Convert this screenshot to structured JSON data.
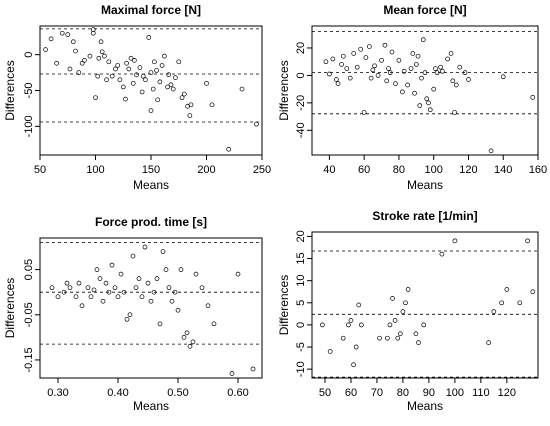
{
  "chart_data": [
    {
      "type": "scatter",
      "title": "Maximal force [N]",
      "xlabel": "Means",
      "ylabel": "Differences",
      "xlim": [
        50,
        250
      ],
      "ylim": [
        -140,
        40
      ],
      "xticks": [
        50,
        100,
        150,
        200,
        250
      ],
      "yticks": [
        -100,
        -50,
        0
      ],
      "hlines": [
        36,
        -27,
        -94
      ],
      "points": [
        [
          55,
          7
        ],
        [
          60,
          22
        ],
        [
          65,
          -12
        ],
        [
          70,
          30
        ],
        [
          75,
          28
        ],
        [
          77,
          -20
        ],
        [
          80,
          18
        ],
        [
          82,
          5
        ],
        [
          85,
          -25
        ],
        [
          88,
          -12
        ],
        [
          90,
          -8
        ],
        [
          95,
          -2
        ],
        [
          98,
          30
        ],
        [
          98,
          35
        ],
        [
          100,
          -60
        ],
        [
          102,
          -30
        ],
        [
          103,
          -5
        ],
        [
          105,
          18
        ],
        [
          106,
          4
        ],
        [
          108,
          -2
        ],
        [
          110,
          -35
        ],
        [
          112,
          -10
        ],
        [
          115,
          -30
        ],
        [
          118,
          -20
        ],
        [
          120,
          -15
        ],
        [
          122,
          -35
        ],
        [
          125,
          -45
        ],
        [
          127,
          -62
        ],
        [
          128,
          -12
        ],
        [
          130,
          -20
        ],
        [
          132,
          -5
        ],
        [
          134,
          -40
        ],
        [
          135,
          -8
        ],
        [
          137,
          -28
        ],
        [
          140,
          -18
        ],
        [
          142,
          -52
        ],
        [
          143,
          -30
        ],
        [
          145,
          -35
        ],
        [
          148,
          24
        ],
        [
          150,
          -25
        ],
        [
          150,
          -78
        ],
        [
          152,
          -48
        ],
        [
          153,
          -10
        ],
        [
          155,
          -22
        ],
        [
          156,
          -63
        ],
        [
          158,
          -38
        ],
        [
          160,
          -15
        ],
        [
          162,
          -2
        ],
        [
          165,
          -45
        ],
        [
          166,
          -28
        ],
        [
          168,
          -42
        ],
        [
          170,
          -48
        ],
        [
          172,
          -32
        ],
        [
          175,
          -10
        ],
        [
          178,
          -60
        ],
        [
          180,
          -55
        ],
        [
          183,
          -72
        ],
        [
          185,
          -85
        ],
        [
          186,
          -70
        ],
        [
          200,
          -40
        ],
        [
          205,
          -70
        ],
        [
          220,
          -132
        ],
        [
          232,
          -48
        ],
        [
          245,
          -97
        ]
      ]
    },
    {
      "type": "scatter",
      "title": "Mean force [N]",
      "xlabel": "Means",
      "ylabel": "Differences",
      "xlim": [
        30,
        160
      ],
      "ylim": [
        -58,
        36
      ],
      "xticks": [
        40,
        60,
        80,
        100,
        120,
        140,
        160
      ],
      "yticks": [
        -40,
        -20,
        0,
        20
      ],
      "hlines": [
        32,
        2,
        -28
      ],
      "points": [
        [
          38,
          10
        ],
        [
          40,
          1
        ],
        [
          42,
          12
        ],
        [
          44,
          -3
        ],
        [
          45,
          -6
        ],
        [
          47,
          8
        ],
        [
          48,
          14
        ],
        [
          50,
          5
        ],
        [
          52,
          -2
        ],
        [
          54,
          16
        ],
        [
          56,
          6
        ],
        [
          58,
          19
        ],
        [
          60,
          -27
        ],
        [
          61,
          13
        ],
        [
          63,
          21
        ],
        [
          64,
          -2
        ],
        [
          65,
          4
        ],
        [
          66,
          7
        ],
        [
          68,
          0
        ],
        [
          70,
          11
        ],
        [
          72,
          22
        ],
        [
          73,
          -4
        ],
        [
          74,
          5
        ],
        [
          75,
          2
        ],
        [
          76,
          17
        ],
        [
          78,
          -6
        ],
        [
          80,
          11
        ],
        [
          82,
          -12
        ],
        [
          83,
          3
        ],
        [
          85,
          -7
        ],
        [
          87,
          5
        ],
        [
          88,
          16
        ],
        [
          89,
          -13
        ],
        [
          90,
          8
        ],
        [
          91,
          14
        ],
        [
          92,
          -22
        ],
        [
          93,
          -2
        ],
        [
          94,
          26
        ],
        [
          95,
          2
        ],
        [
          96,
          -17
        ],
        [
          97,
          -20
        ],
        [
          98,
          -25
        ],
        [
          100,
          -10
        ],
        [
          101,
          5
        ],
        [
          102,
          2
        ],
        [
          104,
          6
        ],
        [
          105,
          3
        ],
        [
          108,
          12
        ],
        [
          110,
          16
        ],
        [
          111,
          -4
        ],
        [
          112,
          -27
        ],
        [
          113,
          -7
        ],
        [
          115,
          6
        ],
        [
          118,
          2
        ],
        [
          120,
          -3
        ],
        [
          133,
          -55
        ],
        [
          140,
          -1
        ],
        [
          157,
          -16
        ]
      ]
    },
    {
      "type": "scatter",
      "title": "Force prod. time [s]",
      "xlabel": "Means",
      "ylabel": "Differences",
      "xlim": [
        0.27,
        0.64
      ],
      "ylim": [
        -0.19,
        0.12
      ],
      "xticks": [
        0.3,
        0.4,
        0.5,
        0.6
      ],
      "xtick_labels": [
        "0.30",
        "0.40",
        "0.50",
        "0.60"
      ],
      "yticks": [
        -0.15,
        -0.05,
        0.05
      ],
      "hlines": [
        0.11,
        0.0,
        -0.115
      ],
      "points": [
        [
          0.29,
          0.01
        ],
        [
          0.3,
          -0.01
        ],
        [
          0.31,
          0.0
        ],
        [
          0.315,
          0.02
        ],
        [
          0.32,
          0.01
        ],
        [
          0.33,
          -0.01
        ],
        [
          0.335,
          0.02
        ],
        [
          0.34,
          -0.03
        ],
        [
          0.35,
          0.01
        ],
        [
          0.355,
          -0.01
        ],
        [
          0.36,
          0.005
        ],
        [
          0.365,
          0.05
        ],
        [
          0.37,
          0.03
        ],
        [
          0.375,
          -0.02
        ],
        [
          0.38,
          0.02
        ],
        [
          0.385,
          0.0
        ],
        [
          0.39,
          0.06
        ],
        [
          0.395,
          0.01
        ],
        [
          0.4,
          -0.01
        ],
        [
          0.405,
          0.04
        ],
        [
          0.41,
          0.0
        ],
        [
          0.415,
          -0.06
        ],
        [
          0.42,
          -0.05
        ],
        [
          0.425,
          0.08
        ],
        [
          0.43,
          0.01
        ],
        [
          0.435,
          0.03
        ],
        [
          0.44,
          -0.01
        ],
        [
          0.445,
          0.1
        ],
        [
          0.45,
          0.02
        ],
        [
          0.455,
          -0.02
        ],
        [
          0.46,
          0.0
        ],
        [
          0.465,
          0.03
        ],
        [
          0.47,
          -0.07
        ],
        [
          0.475,
          0.09
        ],
        [
          0.48,
          0.05
        ],
        [
          0.485,
          0.01
        ],
        [
          0.49,
          -0.02
        ],
        [
          0.495,
          0.0
        ],
        [
          0.5,
          -0.04
        ],
        [
          0.505,
          0.05
        ],
        [
          0.51,
          -0.1
        ],
        [
          0.515,
          -0.09
        ],
        [
          0.52,
          -0.12
        ],
        [
          0.525,
          -0.11
        ],
        [
          0.53,
          0.04
        ],
        [
          0.54,
          0.01
        ],
        [
          0.55,
          -0.03
        ],
        [
          0.56,
          -0.07
        ],
        [
          0.59,
          -0.18
        ],
        [
          0.6,
          0.04
        ],
        [
          0.625,
          -0.17
        ]
      ]
    },
    {
      "type": "scatter",
      "title": "Stroke rate [1/min]",
      "xlabel": "Means",
      "ylabel": "Differences",
      "xlim": [
        45,
        132
      ],
      "ylim": [
        -12,
        21
      ],
      "xticks": [
        50,
        60,
        70,
        80,
        90,
        100,
        110,
        120
      ],
      "yticks": [
        -10,
        -5,
        0,
        5,
        10,
        15,
        20
      ],
      "hlines": [
        16.7,
        2.4,
        -11.8
      ],
      "points": [
        [
          49,
          0
        ],
        [
          52,
          -6
        ],
        [
          57,
          -3
        ],
        [
          59,
          0
        ],
        [
          60,
          1
        ],
        [
          61,
          -9
        ],
        [
          62,
          -5
        ],
        [
          63,
          4.5
        ],
        [
          64,
          0
        ],
        [
          71,
          -3
        ],
        [
          74,
          -3
        ],
        [
          75,
          0
        ],
        [
          76,
          6
        ],
        [
          77,
          1
        ],
        [
          78,
          -3
        ],
        [
          79,
          -2
        ],
        [
          80,
          3
        ],
        [
          81,
          5
        ],
        [
          82,
          8
        ],
        [
          85,
          -2
        ],
        [
          86,
          -4
        ],
        [
          88,
          0
        ],
        [
          95,
          16
        ],
        [
          100,
          19
        ],
        [
          113,
          -4
        ],
        [
          115,
          3
        ],
        [
          118,
          5
        ],
        [
          120,
          8
        ],
        [
          125,
          5
        ],
        [
          128,
          19
        ],
        [
          130,
          7.5
        ]
      ]
    }
  ]
}
